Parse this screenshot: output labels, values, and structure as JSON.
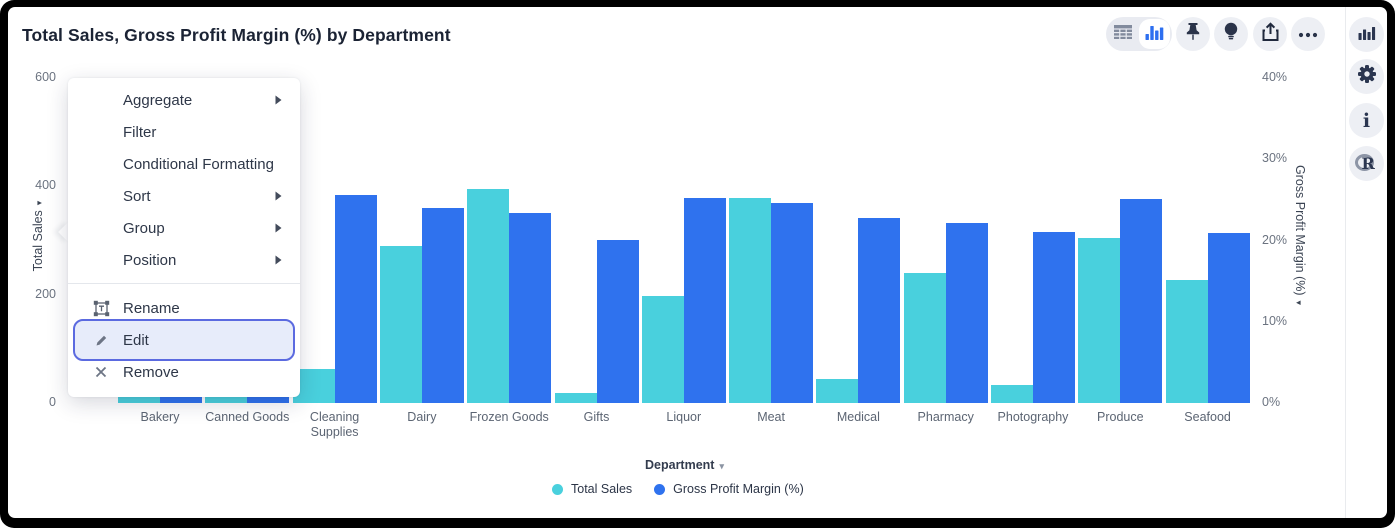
{
  "window": {
    "title": "Total Sales, Gross Profit Margin (%) by Department"
  },
  "card_toolbar": {
    "view_switcher": [
      {
        "name": "table-view",
        "selected": false
      },
      {
        "name": "chart-view",
        "selected": true
      }
    ],
    "actions": [
      "pin",
      "lightbulb",
      "export",
      "more-options"
    ]
  },
  "right_rail": {
    "icons": [
      "chart-type",
      "settings",
      "info",
      "r-analytics"
    ]
  },
  "context_menu": {
    "items": [
      {
        "label": "Aggregate",
        "submenu": true
      },
      {
        "label": "Filter",
        "submenu": false
      },
      {
        "label": "Conditional Formatting",
        "submenu": false
      },
      {
        "label": "Sort",
        "submenu": true
      },
      {
        "label": "Group",
        "submenu": true
      },
      {
        "label": "Position",
        "submenu": true
      },
      {
        "divider": true
      },
      {
        "label": "Rename",
        "icon": "rename-icon"
      },
      {
        "label": "Edit",
        "icon": "edit-icon",
        "highlighted": true
      },
      {
        "label": "Remove",
        "icon": "remove-icon"
      }
    ]
  },
  "chart_data": {
    "type": "bar",
    "title": "Total Sales, Gross Profit Margin (%) by Department",
    "categories": [
      "Bakery",
      "Canned Goods",
      "Cleaning Supplies",
      "Dairy",
      "Frozen Goods",
      "Gifts",
      "Liquor",
      "Meat",
      "Medical",
      "Pharmacy",
      "Photography",
      "Produce",
      "Seafood"
    ],
    "series": [
      {
        "name": "Total Sales",
        "axis": "left",
        "color": "#49d0dd",
        "values": [
          150,
          165,
          62,
          290,
          395,
          18,
          198,
          378,
          44,
          240,
          33,
          305,
          227
        ]
      },
      {
        "name": "Gross Profit Margin (%)",
        "axis": "right",
        "color": "#2f72ee",
        "values": [
          23.0,
          23.5,
          25.6,
          24.0,
          23.4,
          20.1,
          25.2,
          24.6,
          22.8,
          22.2,
          21.0,
          25.1,
          20.9
        ]
      }
    ],
    "left_axis": {
      "title": "Total Sales",
      "range": [
        0,
        600
      ],
      "ticks": [
        600,
        400,
        200,
        0
      ]
    },
    "right_axis": {
      "title": "Gross Profit Margin (%)",
      "range": [
        0,
        40
      ],
      "ticks": [
        "40%",
        "30%",
        "20%",
        "10%",
        "0%"
      ]
    },
    "xlabel": "Department",
    "legend": [
      "Total Sales",
      "Gross Profit Margin (%)"
    ],
    "legend_position": "bottom",
    "grid": false
  }
}
